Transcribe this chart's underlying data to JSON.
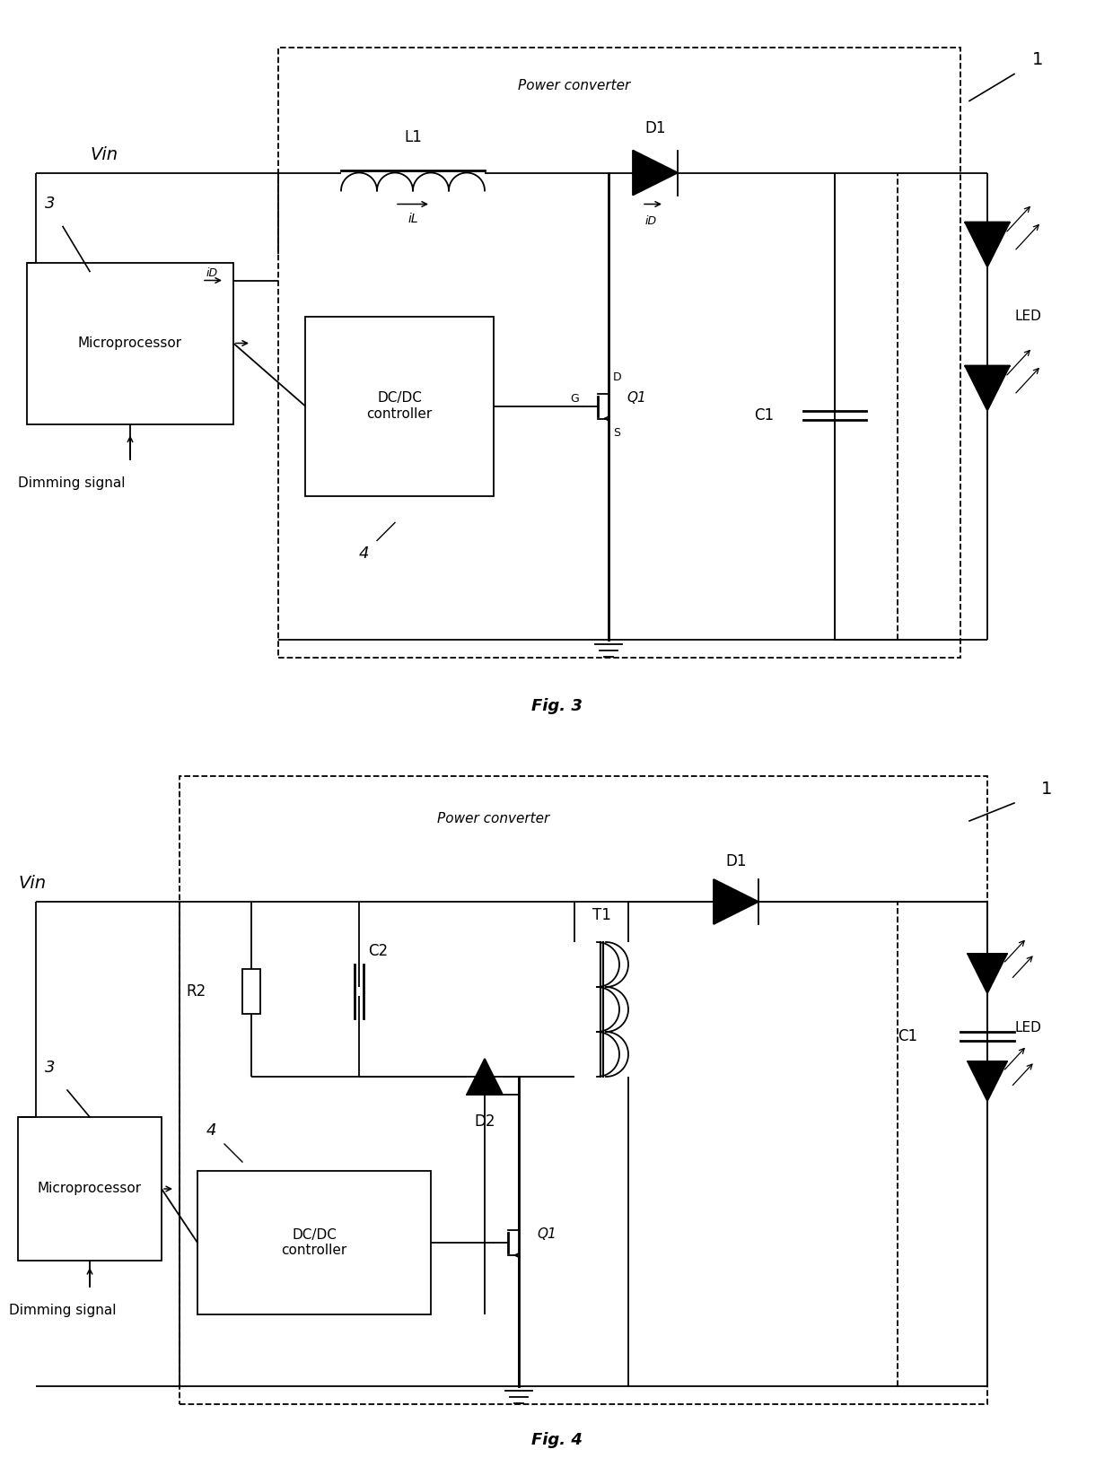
{
  "fig3": {
    "title": "Fig. 3",
    "power_converter_label": "Power converter",
    "microprocessor_label": "Microprocessor",
    "dcdc_label": "DC/DC\ncontroller",
    "vin_label": "Vin",
    "dimming_label": "Dimming signal",
    "labels": {
      "L1": "L1",
      "iL": "iL",
      "D1": "D1",
      "iD": "iD",
      "C1": "C1",
      "Q1": "Q1",
      "G": "G",
      "D": "D",
      "S": "S",
      "LED": "LED",
      "num1": "1",
      "num3": "3",
      "num4": "4"
    }
  },
  "fig4": {
    "title": "Fig. 4",
    "power_converter_label": "Power converter",
    "microprocessor_label": "Microprocessor",
    "dcdc_label": "DC/DC\ncontroller",
    "vin_label": "Vin",
    "dimming_label": "Dimming signal",
    "labels": {
      "T1": "T1",
      "D1": "D1",
      "D2": "D2",
      "R2": "R2",
      "C1": "C1",
      "C2": "C2",
      "Q1": "Q1",
      "LED": "LED",
      "num1": "1",
      "num3": "3",
      "num4": "4"
    }
  }
}
